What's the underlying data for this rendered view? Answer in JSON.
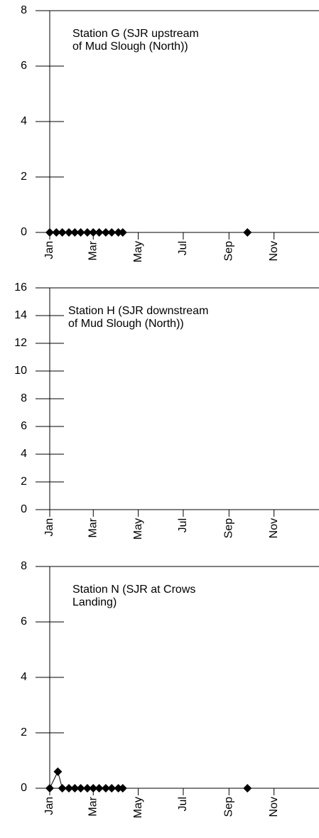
{
  "chart_data": [
    {
      "type": "line",
      "title": [
        "Station G (SJR upstream",
        "of Mud Slough (North))"
      ],
      "xlim": [
        0,
        365
      ],
      "ylim": [
        0,
        8
      ],
      "xticks": [
        {
          "value": 0,
          "label": "Jan"
        },
        {
          "value": 59,
          "label": "Mar"
        },
        {
          "value": 120,
          "label": "May"
        },
        {
          "value": 181,
          "label": "Jul"
        },
        {
          "value": 243,
          "label": "Sep"
        },
        {
          "value": 304,
          "label": "Nov"
        }
      ],
      "yticks": [
        0,
        2,
        4,
        6,
        8
      ],
      "series": [
        {
          "color": "#000000",
          "x": [
            0,
            9,
            17,
            26,
            34,
            42,
            51,
            59,
            67,
            76,
            84,
            93,
            99,
            268
          ],
          "values": [
            0,
            0,
            0,
            0,
            0,
            0,
            0,
            0,
            0,
            0,
            0,
            0,
            0,
            0
          ]
        }
      ]
    },
    {
      "type": "line",
      "title": [
        "Station H (SJR downstream",
        "of Mud Slough (North))"
      ],
      "xlim": [
        0,
        365
      ],
      "ylim": [
        0,
        16
      ],
      "xticks": [
        {
          "value": 0,
          "label": "Jan"
        },
        {
          "value": 59,
          "label": "Mar"
        },
        {
          "value": 120,
          "label": "May"
        },
        {
          "value": 181,
          "label": "Jul"
        },
        {
          "value": 243,
          "label": "Sep"
        },
        {
          "value": 304,
          "label": "Nov"
        }
      ],
      "yticks": [
        0,
        2,
        4,
        6,
        8,
        10,
        12,
        14,
        16
      ],
      "series": []
    },
    {
      "type": "line",
      "title": [
        "Station N (SJR at Crows",
        "Landing)"
      ],
      "xlim": [
        0,
        365
      ],
      "ylim": [
        0,
        8
      ],
      "xticks": [
        {
          "value": 0,
          "label": "Jan"
        },
        {
          "value": 59,
          "label": "Mar"
        },
        {
          "value": 120,
          "label": "May"
        },
        {
          "value": 181,
          "label": "Jul"
        },
        {
          "value": 243,
          "label": "Sep"
        },
        {
          "value": 304,
          "label": "Nov"
        }
      ],
      "yticks": [
        0,
        2,
        4,
        6,
        8
      ],
      "series": [
        {
          "color": "#000000",
          "x": [
            0,
            11,
            17,
            26,
            34,
            42,
            51,
            59,
            67,
            76,
            84,
            93,
            99,
            268
          ],
          "values": [
            0,
            0.6,
            0,
            0,
            0,
            0,
            0,
            0,
            0,
            0,
            0,
            0,
            0,
            0
          ]
        }
      ]
    }
  ]
}
